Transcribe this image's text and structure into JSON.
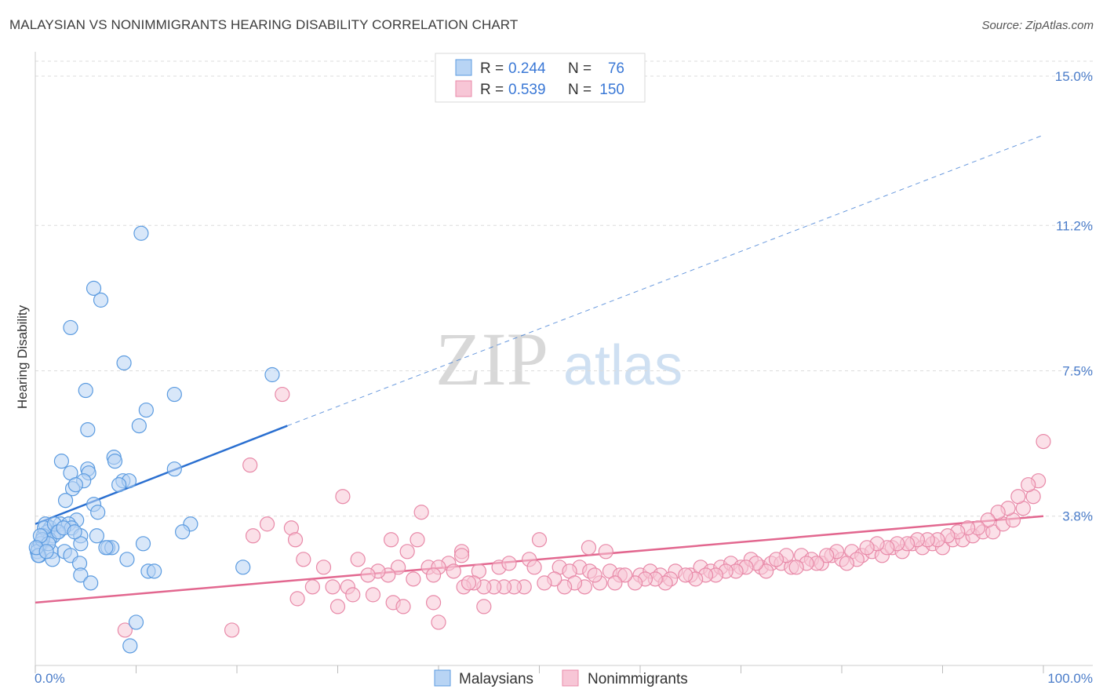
{
  "title": "MALAYSIAN VS NONIMMIGRANTS HEARING DISABILITY CORRELATION CHART",
  "source": "Source: ZipAtlas.com",
  "watermark": {
    "zip": "ZIP",
    "atlas": "atlas"
  },
  "colors": {
    "blue": "#5b9be0",
    "blue_fill": "#b8d4f4",
    "blue_line": "#2a6fd0",
    "pink": "#e889a8",
    "pink_fill": "#f7c6d6",
    "pink_line": "#e2678f",
    "tick_text": "#4a7cc9",
    "grid": "#dcdcdc"
  },
  "legend": {
    "rows": [
      {
        "r_label": "R =",
        "r_value": "0.244",
        "n_label": "N =",
        "n_value": "76"
      },
      {
        "r_label": "R =",
        "r_value": "0.539",
        "n_label": "N =",
        "n_value": "150"
      }
    ]
  },
  "bottom_legend": [
    "Malaysians",
    "Nonimmigrants"
  ],
  "chart_data": {
    "type": "scatter",
    "title": "MALAYSIAN VS NONIMMIGRANTS HEARING DISABILITY CORRELATION CHART",
    "xlabel": "",
    "ylabel": "Hearing Disability",
    "xlim": [
      0,
      100
    ],
    "ylim": [
      0,
      15.0
    ],
    "x_tick_labels": [
      "0.0%",
      "100.0%"
    ],
    "y_ticks": [
      3.8,
      7.5,
      11.2,
      15.0
    ],
    "y_tick_labels": [
      "3.8%",
      "7.5%",
      "11.2%",
      "15.0%"
    ],
    "grid": true,
    "series": [
      {
        "name": "Malaysians",
        "r": 0.244,
        "n": 76,
        "trend": {
          "x": [
            0,
            25
          ],
          "y": [
            3.6,
            6.1
          ],
          "dashed_extension_to": [
            100,
            13.5
          ]
        },
        "points": [
          [
            10.5,
            11.0
          ],
          [
            5.8,
            9.6
          ],
          [
            6.5,
            9.3
          ],
          [
            3.5,
            8.6
          ],
          [
            8.8,
            7.7
          ],
          [
            23.5,
            7.4
          ],
          [
            5.0,
            7.0
          ],
          [
            13.8,
            6.9
          ],
          [
            11.0,
            6.5
          ],
          [
            10.3,
            6.1
          ],
          [
            5.2,
            6.0
          ],
          [
            2.6,
            5.2
          ],
          [
            7.8,
            5.3
          ],
          [
            7.9,
            5.2
          ],
          [
            3.5,
            4.9
          ],
          [
            5.2,
            5.0
          ],
          [
            5.3,
            4.9
          ],
          [
            13.8,
            5.0
          ],
          [
            4.8,
            4.7
          ],
          [
            8.7,
            4.7
          ],
          [
            9.3,
            4.7
          ],
          [
            3.7,
            4.5
          ],
          [
            4.0,
            4.6
          ],
          [
            8.3,
            4.6
          ],
          [
            3.0,
            4.2
          ],
          [
            5.8,
            4.1
          ],
          [
            6.2,
            3.9
          ],
          [
            4.1,
            3.7
          ],
          [
            1.0,
            3.6
          ],
          [
            1.5,
            3.5
          ],
          [
            2.5,
            3.6
          ],
          [
            3.3,
            3.6
          ],
          [
            3.6,
            3.5
          ],
          [
            2.2,
            3.4
          ],
          [
            1.2,
            3.4
          ],
          [
            1.8,
            3.3
          ],
          [
            0.8,
            3.3
          ],
          [
            1.4,
            3.2
          ],
          [
            0.6,
            3.1
          ],
          [
            0.3,
            3.0
          ],
          [
            0.5,
            3.1
          ],
          [
            0.2,
            2.9
          ],
          [
            0.4,
            2.8
          ],
          [
            1.6,
            2.9
          ],
          [
            2.9,
            2.9
          ],
          [
            3.5,
            2.8
          ],
          [
            1.7,
            2.7
          ],
          [
            0.3,
            2.8
          ],
          [
            4.5,
            3.3
          ],
          [
            6.1,
            3.3
          ],
          [
            7.2,
            3.0
          ],
          [
            7.6,
            3.0
          ],
          [
            7.0,
            3.0
          ],
          [
            10.7,
            3.1
          ],
          [
            9.1,
            2.7
          ],
          [
            4.4,
            2.6
          ],
          [
            4.5,
            3.1
          ],
          [
            15.4,
            3.6
          ],
          [
            14.6,
            3.4
          ],
          [
            20.6,
            2.5
          ],
          [
            11.2,
            2.4
          ],
          [
            11.8,
            2.4
          ],
          [
            4.5,
            2.3
          ],
          [
            5.5,
            2.1
          ],
          [
            10.0,
            1.1
          ],
          [
            9.4,
            0.5
          ],
          [
            0.9,
            3.5
          ],
          [
            1.9,
            3.6
          ],
          [
            2.3,
            3.4
          ],
          [
            0.7,
            3.2
          ],
          [
            1.3,
            3.1
          ],
          [
            0.5,
            3.3
          ],
          [
            2.8,
            3.5
          ],
          [
            3.9,
            3.4
          ],
          [
            0.1,
            3.0
          ],
          [
            1.1,
            2.9
          ]
        ]
      },
      {
        "name": "Nonimmigrants",
        "r": 0.539,
        "n": 150,
        "trend": {
          "x": [
            0,
            100
          ],
          "y": [
            1.6,
            3.8
          ]
        },
        "points": [
          [
            24.5,
            6.9
          ],
          [
            100.0,
            5.7
          ],
          [
            21.3,
            5.1
          ],
          [
            30.5,
            4.3
          ],
          [
            38.3,
            3.9
          ],
          [
            25.4,
            3.5
          ],
          [
            21.6,
            3.3
          ],
          [
            25.8,
            3.2
          ],
          [
            35.3,
            3.2
          ],
          [
            37.9,
            3.2
          ],
          [
            50.0,
            3.2
          ],
          [
            54.9,
            3.0
          ],
          [
            36.9,
            2.9
          ],
          [
            42.3,
            2.9
          ],
          [
            56.6,
            2.9
          ],
          [
            26.6,
            2.7
          ],
          [
            32.0,
            2.7
          ],
          [
            41.0,
            2.6
          ],
          [
            42.3,
            2.8
          ],
          [
            49.0,
            2.7
          ],
          [
            54.0,
            2.5
          ],
          [
            28.6,
            2.5
          ],
          [
            36.0,
            2.5
          ],
          [
            39.0,
            2.5
          ],
          [
            40.0,
            2.5
          ],
          [
            44.0,
            2.4
          ],
          [
            46.0,
            2.5
          ],
          [
            47.0,
            2.6
          ],
          [
            49.5,
            2.5
          ],
          [
            52.0,
            2.5
          ],
          [
            53.0,
            2.4
          ],
          [
            55.0,
            2.4
          ],
          [
            57.0,
            2.4
          ],
          [
            58.0,
            2.3
          ],
          [
            60.0,
            2.3
          ],
          [
            61.0,
            2.4
          ],
          [
            62.0,
            2.3
          ],
          [
            63.5,
            2.4
          ],
          [
            65.0,
            2.3
          ],
          [
            66.0,
            2.5
          ],
          [
            67.0,
            2.4
          ],
          [
            68.0,
            2.5
          ],
          [
            69.0,
            2.6
          ],
          [
            70.0,
            2.5
          ],
          [
            71.0,
            2.7
          ],
          [
            72.0,
            2.5
          ],
          [
            73.0,
            2.6
          ],
          [
            74.0,
            2.6
          ],
          [
            75.0,
            2.5
          ],
          [
            76.0,
            2.8
          ],
          [
            77.0,
            2.7
          ],
          [
            78.0,
            2.6
          ],
          [
            79.0,
            2.8
          ],
          [
            80.0,
            2.7
          ],
          [
            81.0,
            2.9
          ],
          [
            82.0,
            2.8
          ],
          [
            83.0,
            2.9
          ],
          [
            84.0,
            2.8
          ],
          [
            85.0,
            3.0
          ],
          [
            86.0,
            2.9
          ],
          [
            87.0,
            3.1
          ],
          [
            88.0,
            3.0
          ],
          [
            89.0,
            3.1
          ],
          [
            90.0,
            3.0
          ],
          [
            91.0,
            3.2
          ],
          [
            92.0,
            3.2
          ],
          [
            93.0,
            3.3
          ],
          [
            94.0,
            3.4
          ],
          [
            95.0,
            3.4
          ],
          [
            96.0,
            3.6
          ],
          [
            97.0,
            3.7
          ],
          [
            98.0,
            4.0
          ],
          [
            99.0,
            4.3
          ],
          [
            99.5,
            4.7
          ],
          [
            98.5,
            4.6
          ],
          [
            97.5,
            4.3
          ],
          [
            96.5,
            4.0
          ],
          [
            95.5,
            3.9
          ],
          [
            94.5,
            3.7
          ],
          [
            93.5,
            3.5
          ],
          [
            92.5,
            3.5
          ],
          [
            91.5,
            3.4
          ],
          [
            90.5,
            3.3
          ],
          [
            89.5,
            3.2
          ],
          [
            88.5,
            3.2
          ],
          [
            87.5,
            3.2
          ],
          [
            86.5,
            3.1
          ],
          [
            85.5,
            3.1
          ],
          [
            84.5,
            3.0
          ],
          [
            83.5,
            3.1
          ],
          [
            82.5,
            3.0
          ],
          [
            81.5,
            2.7
          ],
          [
            80.5,
            2.6
          ],
          [
            79.5,
            2.9
          ],
          [
            78.5,
            2.8
          ],
          [
            77.5,
            2.6
          ],
          [
            76.5,
            2.6
          ],
          [
            75.5,
            2.5
          ],
          [
            74.5,
            2.8
          ],
          [
            73.5,
            2.7
          ],
          [
            72.5,
            2.4
          ],
          [
            71.5,
            2.6
          ],
          [
            70.5,
            2.5
          ],
          [
            69.5,
            2.4
          ],
          [
            68.5,
            2.4
          ],
          [
            67.5,
            2.3
          ],
          [
            66.5,
            2.3
          ],
          [
            65.5,
            2.2
          ],
          [
            64.5,
            2.3
          ],
          [
            63.0,
            2.2
          ],
          [
            62.5,
            2.1
          ],
          [
            61.5,
            2.2
          ],
          [
            60.5,
            2.2
          ],
          [
            59.5,
            2.1
          ],
          [
            58.5,
            2.3
          ],
          [
            57.5,
            2.1
          ],
          [
            56.0,
            2.1
          ],
          [
            55.5,
            2.3
          ],
          [
            54.5,
            2.0
          ],
          [
            53.5,
            2.1
          ],
          [
            52.5,
            2.0
          ],
          [
            51.5,
            2.2
          ],
          [
            50.5,
            2.1
          ],
          [
            48.5,
            2.0
          ],
          [
            47.5,
            2.0
          ],
          [
            46.5,
            2.0
          ],
          [
            45.5,
            2.0
          ],
          [
            44.5,
            2.0
          ],
          [
            43.5,
            2.1
          ],
          [
            42.5,
            2.0
          ],
          [
            43.0,
            2.1
          ],
          [
            41.5,
            2.4
          ],
          [
            39.5,
            2.3
          ],
          [
            37.5,
            2.2
          ],
          [
            35.0,
            2.3
          ],
          [
            34.0,
            2.4
          ],
          [
            33.0,
            2.3
          ],
          [
            31.0,
            2.0
          ],
          [
            29.5,
            2.0
          ],
          [
            27.5,
            2.0
          ],
          [
            26.0,
            1.7
          ],
          [
            30.0,
            1.5
          ],
          [
            31.5,
            1.8
          ],
          [
            33.5,
            1.8
          ],
          [
            35.5,
            1.6
          ],
          [
            36.5,
            1.5
          ],
          [
            39.5,
            1.6
          ],
          [
            40.0,
            1.1
          ],
          [
            44.5,
            1.5
          ],
          [
            8.9,
            0.9
          ],
          [
            19.5,
            0.9
          ],
          [
            23.0,
            3.6
          ]
        ]
      }
    ]
  }
}
